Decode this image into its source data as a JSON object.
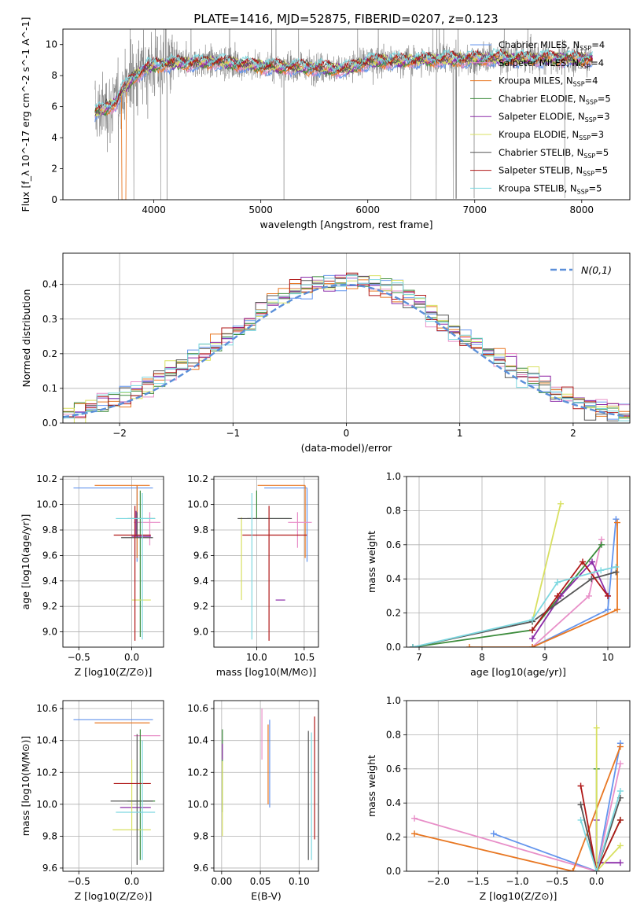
{
  "figure_title": "PLATE=1416, MJD=52875, FIBERID=0207, z=0.123",
  "colors": {
    "Chabrier MILES": "#6495ED",
    "Salpeter MILES": "#E88FC8",
    "Kroupa MILES": "#E87722",
    "Chabrier ELODIE": "#3C8C3C",
    "Salpeter ELODIE": "#8B2BA8",
    "Kroupa ELODIE": "#D8E060",
    "Chabrier STELIB": "#555555",
    "Salpeter STELIB": "#B01818",
    "Kroupa STELIB": "#7DD8E0",
    "data": "#808080"
  },
  "chart_data": [
    {
      "id": "spectrum",
      "type": "line",
      "xlabel": "wavelength [Angstrom, rest frame]",
      "ylabel": "Flux [f_λ 10^-17 erg cm^-2 s^-1 A^-1]",
      "xlim": [
        3150,
        8450
      ],
      "ylim": [
        0,
        11
      ],
      "xticks": [
        4000,
        5000,
        6000,
        7000,
        8000
      ],
      "yticks": [
        0,
        2,
        4,
        6,
        8,
        10
      ],
      "legend_position": "top-right",
      "legend": [
        {
          "name": "Chabrier MILES",
          "nssp": "4"
        },
        {
          "name": "Salpeter MILES",
          "nssp": "4"
        },
        {
          "name": "Kroupa MILES",
          "nssp": "4"
        },
        {
          "name": "Chabrier ELODIE",
          "nssp": "5"
        },
        {
          "name": "Salpeter ELODIE",
          "nssp": "3"
        },
        {
          "name": "Kroupa ELODIE",
          "nssp": "3"
        },
        {
          "name": "Chabrier STELIB",
          "nssp": "5"
        },
        {
          "name": "Salpeter STELIB",
          "nssp": "5"
        },
        {
          "name": "Kroupa STELIB",
          "nssp": "5"
        }
      ],
      "continuum": [
        [
          3450,
          5.6
        ],
        [
          3550,
          5.9
        ],
        [
          3650,
          6.3
        ],
        [
          3700,
          7.0
        ],
        [
          3800,
          7.8
        ],
        [
          3900,
          8.4
        ],
        [
          4000,
          8.7
        ],
        [
          4300,
          8.8
        ],
        [
          4600,
          8.9
        ],
        [
          5000,
          8.6
        ],
        [
          5500,
          8.5
        ],
        [
          5800,
          8.4
        ],
        [
          6000,
          8.9
        ],
        [
          6500,
          9.0
        ],
        [
          7000,
          9.1
        ],
        [
          7500,
          9.1
        ],
        [
          8000,
          9.1
        ],
        [
          8100,
          9.1
        ]
      ]
    },
    {
      "id": "residuals",
      "type": "histogram",
      "xlabel": "(data-model)/error",
      "ylabel": "Normed distribution",
      "xlim": [
        -2.5,
        2.5
      ],
      "ylim": [
        0,
        0.49
      ],
      "xticks": [
        -2,
        -1,
        0,
        1,
        2
      ],
      "yticks": [
        0.0,
        0.1,
        0.2,
        0.3,
        0.4
      ],
      "bin_width": 0.1,
      "reference_curve": "N(0,1)",
      "legend_position": "top-right"
    },
    {
      "id": "Z_vs_age",
      "type": "scatter",
      "xlabel": "Z [log10(Z/Z⊙)]",
      "ylabel": "age [log10(age/yr)]",
      "xlim": [
        -0.65,
        0.3
      ],
      "ylim": [
        8.88,
        10.22
      ],
      "xticks": [
        -0.5,
        0.0
      ],
      "yticks": [
        9.0,
        9.2,
        9.4,
        9.6,
        9.8,
        10.0,
        10.2
      ],
      "points": [
        {
          "s": "Chabrier MILES",
          "x": 0.05,
          "y": 10.13,
          "xerr": [
            0.6,
            0.15
          ],
          "yerr": [
            0.58,
            0.02
          ]
        },
        {
          "s": "Kroupa MILES",
          "x": 0.05,
          "y": 10.15,
          "xerr": [
            0.4,
            0.12
          ],
          "yerr": [
            0.57,
            0.0
          ]
        },
        {
          "s": "Salpeter MILES",
          "x": 0.17,
          "y": 9.86,
          "xerr": [
            0.15,
            0.1
          ],
          "yerr": [
            0.18,
            0.08
          ]
        },
        {
          "s": "Chabrier ELODIE",
          "x": 0.08,
          "y": 9.89,
          "xerr": [
            0.12,
            0.14
          ],
          "yerr": [
            0.93,
            0.22
          ]
        },
        {
          "s": "Salpeter ELODIE",
          "x": 0.04,
          "y": 9.75,
          "xerr": [
            0.04,
            0.14
          ],
          "yerr": [
            0.0,
            0.2
          ]
        },
        {
          "s": "Kroupa ELODIE",
          "x": 0.0,
          "y": 9.25,
          "xerr": [
            0.0,
            0.18
          ],
          "yerr": [
            0.0,
            0.0
          ]
        },
        {
          "s": "Chabrier STELIB",
          "x": 0.05,
          "y": 9.74,
          "xerr": [
            0.15,
            0.15
          ],
          "yerr": [
            0.0,
            0.2
          ]
        },
        {
          "s": "Salpeter STELIB",
          "x": 0.03,
          "y": 9.76,
          "xerr": [
            0.2,
            0.15
          ],
          "yerr": [
            0.83,
            0.23
          ]
        },
        {
          "s": "Kroupa STELIB",
          "x": 0.1,
          "y": 9.89,
          "xerr": [
            0.25,
            0.12
          ],
          "yerr": [
            0.95,
            0.2
          ]
        }
      ]
    },
    {
      "id": "mass_vs_age",
      "type": "scatter",
      "xlabel": "mass [log10(M/M⊙)]",
      "ylabel": "",
      "xlim": [
        9.55,
        10.65
      ],
      "ylim": [
        8.88,
        10.22
      ],
      "xticks": [
        10.0,
        10.5
      ],
      "yticks": [
        9.0,
        9.2,
        9.4,
        9.6,
        9.8,
        10.0,
        10.2
      ],
      "points": [
        {
          "s": "Chabrier MILES",
          "x": 10.53,
          "y": 10.13,
          "xerr": [
            0.45,
            0.0
          ],
          "yerr": [
            0.58,
            0.0
          ]
        },
        {
          "s": "Kroupa MILES",
          "x": 10.51,
          "y": 10.15,
          "xerr": [
            0.5,
            0.0
          ],
          "yerr": [
            0.57,
            0.0
          ]
        },
        {
          "s": "Salpeter MILES",
          "x": 10.43,
          "y": 9.86,
          "xerr": [
            0.1,
            0.15
          ],
          "yerr": [
            0.2,
            0.08
          ]
        },
        {
          "s": "Chabrier ELODIE",
          "x": 10.0,
          "y": 9.89,
          "xerr": [
            0.1,
            0.35
          ],
          "yerr": [
            0.0,
            0.22
          ]
        },
        {
          "s": "Salpeter ELODIE",
          "x": 10.2,
          "y": 9.25,
          "xerr": [
            0.0,
            0.1
          ],
          "yerr": [
            0.0,
            0.0
          ]
        },
        {
          "s": "Kroupa ELODIE",
          "x": 9.84,
          "y": 9.25,
          "xerr": [
            0.0,
            0.0
          ],
          "yerr": [
            0.0,
            0.65
          ]
        },
        {
          "s": "Chabrier STELIB",
          "x": 10.02,
          "y": 9.89,
          "xerr": [
            0.22,
            0.35
          ],
          "yerr": [
            0.0,
            0.0
          ]
        },
        {
          "s": "Salpeter STELIB",
          "x": 10.13,
          "y": 9.76,
          "xerr": [
            0.28,
            0.4
          ],
          "yerr": [
            0.83,
            0.23
          ]
        },
        {
          "s": "Kroupa STELIB",
          "x": 9.95,
          "y": 9.89,
          "xerr": [
            0.0,
            0.0
          ],
          "yerr": [
            0.95,
            0.2
          ]
        }
      ]
    },
    {
      "id": "age_vs_weight",
      "type": "line",
      "xlabel": "age [log10(age/yr)]",
      "ylabel": "mass weight",
      "xlim": [
        6.8,
        10.35
      ],
      "ylim": [
        0,
        1.0
      ],
      "xticks": [
        7,
        8,
        9,
        10
      ],
      "yticks": [
        0.0,
        0.2,
        0.4,
        0.6,
        0.8,
        1.0
      ],
      "series": [
        {
          "s": "Chabrier MILES",
          "points": [
            [
              8.8,
              0.0
            ],
            [
              10.0,
              0.22
            ],
            [
              10.13,
              0.75
            ]
          ]
        },
        {
          "s": "Salpeter MILES",
          "points": [
            [
              8.8,
              0.0
            ],
            [
              9.7,
              0.3
            ],
            [
              9.9,
              0.63
            ]
          ]
        },
        {
          "s": "Kroupa MILES",
          "points": [
            [
              7.8,
              0.0
            ],
            [
              8.8,
              0.0
            ],
            [
              10.15,
              0.22
            ],
            [
              10.15,
              0.73
            ]
          ]
        },
        {
          "s": "Chabrier ELODIE",
          "points": [
            [
              6.9,
              0.0
            ],
            [
              8.8,
              0.1
            ],
            [
              9.9,
              0.6
            ]
          ]
        },
        {
          "s": "Salpeter ELODIE",
          "points": [
            [
              8.8,
              0.05
            ],
            [
              9.25,
              0.3
            ],
            [
              9.75,
              0.5
            ],
            [
              10.0,
              0.3
            ]
          ]
        },
        {
          "s": "Kroupa ELODIE",
          "points": [
            [
              8.8,
              0.15
            ],
            [
              9.25,
              0.84
            ]
          ]
        },
        {
          "s": "Chabrier STELIB",
          "points": [
            [
              6.9,
              0.0
            ],
            [
              8.8,
              0.15
            ],
            [
              9.74,
              0.4
            ],
            [
              10.13,
              0.44
            ]
          ]
        },
        {
          "s": "Salpeter STELIB",
          "points": [
            [
              8.8,
              0.1
            ],
            [
              9.2,
              0.3
            ],
            [
              9.6,
              0.5
            ],
            [
              10.0,
              0.3
            ]
          ]
        },
        {
          "s": "Kroupa STELIB",
          "points": [
            [
              6.9,
              0.0
            ],
            [
              8.8,
              0.16
            ],
            [
              9.2,
              0.38
            ],
            [
              9.89,
              0.45
            ],
            [
              10.13,
              0.47
            ]
          ]
        }
      ]
    },
    {
      "id": "Z_vs_mass",
      "type": "scatter",
      "xlabel": "Z [log10(Z/Z⊙)]",
      "ylabel": "mass [log10(M/M⊙)]",
      "xlim": [
        -0.65,
        0.3
      ],
      "ylim": [
        9.58,
        10.65
      ],
      "xticks": [
        -0.5,
        0.0
      ],
      "yticks": [
        9.6,
        9.8,
        10.0,
        10.2,
        10.4,
        10.6
      ],
      "points": [
        {
          "s": "Chabrier MILES",
          "x": 0.05,
          "y": 10.53,
          "xerr": [
            0.6,
            0.15
          ],
          "yerr": [
            0.0,
            0.0
          ]
        },
        {
          "s": "Kroupa MILES",
          "x": 0.05,
          "y": 10.51,
          "xerr": [
            0.4,
            0.12
          ],
          "yerr": [
            0.0,
            0.0
          ]
        },
        {
          "s": "Salpeter MILES",
          "x": 0.17,
          "y": 10.43,
          "xerr": [
            0.15,
            0.1
          ],
          "yerr": [
            0.0,
            0.0
          ]
        },
        {
          "s": "Chabrier ELODIE",
          "x": 0.08,
          "y": 10.02,
          "xerr": [
            0.12,
            0.14
          ],
          "yerr": [
            0.37,
            0.45
          ]
        },
        {
          "s": "Salpeter ELODIE",
          "x": 0.04,
          "y": 9.98,
          "xerr": [
            0.15,
            0.14
          ],
          "yerr": [
            0.0,
            0.0
          ]
        },
        {
          "s": "Kroupa ELODIE",
          "x": 0.0,
          "y": 9.84,
          "xerr": [
            0.18,
            0.18
          ],
          "yerr": [
            0.0,
            0.44
          ]
        },
        {
          "s": "Chabrier STELIB",
          "x": 0.05,
          "y": 10.02,
          "xerr": [
            0.25,
            0.15
          ],
          "yerr": [
            0.4,
            0.42
          ]
        },
        {
          "s": "Salpeter STELIB",
          "x": 0.03,
          "y": 10.13,
          "xerr": [
            0.2,
            0.15
          ],
          "yerr": [
            0.0,
            0.0
          ]
        },
        {
          "s": "Kroupa STELIB",
          "x": 0.1,
          "y": 9.95,
          "xerr": [
            0.25,
            0.12
          ],
          "yerr": [
            0.3,
            0.45
          ]
        }
      ]
    },
    {
      "id": "ebv_vs_mass",
      "type": "scatter",
      "xlabel": "E(B-V)",
      "ylabel": "",
      "xlim": [
        -0.01,
        0.125
      ],
      "ylim": [
        9.58,
        10.65
      ],
      "xticks": [
        0.0,
        0.05,
        0.1
      ],
      "yticks": [
        9.6,
        9.8,
        10.0,
        10.2,
        10.4,
        10.6
      ],
      "points": [
        {
          "s": "Chabrier MILES",
          "x": 0.062,
          "y": 10.28,
          "xerr": [
            0.0,
            0.0
          ],
          "yerr": [
            0.3,
            0.25
          ]
        },
        {
          "s": "Salpeter MILES",
          "x": 0.052,
          "y": 10.43,
          "xerr": [
            0.0,
            0.0
          ],
          "yerr": [
            0.15,
            0.17
          ]
        },
        {
          "s": "Kroupa MILES",
          "x": 0.06,
          "y": 10.25,
          "xerr": [
            0.0,
            0.0
          ],
          "yerr": [
            0.25,
            0.25
          ]
        },
        {
          "s": "Chabrier ELODIE",
          "x": 0.001,
          "y": 10.3,
          "xerr": [
            0.0,
            0.0
          ],
          "yerr": [
            0.35,
            0.17
          ]
        },
        {
          "s": "Salpeter ELODIE",
          "x": 0.001,
          "y": 10.33,
          "xerr": [
            0.0,
            0.0
          ],
          "yerr": [
            0.05,
            0.05
          ]
        },
        {
          "s": "Kroupa ELODIE",
          "x": 0.001,
          "y": 10.0,
          "xerr": [
            0.0,
            0.0
          ],
          "yerr": [
            0.2,
            0.27
          ]
        },
        {
          "s": "Chabrier STELIB",
          "x": 0.112,
          "y": 10.0,
          "xerr": [
            0.0,
            0.0
          ],
          "yerr": [
            0.35,
            0.46
          ]
        },
        {
          "s": "Salpeter STELIB",
          "x": 0.12,
          "y": 10.15,
          "xerr": [
            0.0,
            0.0
          ],
          "yerr": [
            0.37,
            0.4
          ]
        },
        {
          "s": "Kroupa STELIB",
          "x": 0.116,
          "y": 10.0,
          "xerr": [
            0.0,
            0.0
          ],
          "yerr": [
            0.35,
            0.45
          ]
        }
      ]
    },
    {
      "id": "Z_vs_weight",
      "type": "line",
      "xlabel": "Z [log10(Z/Z⊙)]",
      "ylabel": "mass weight",
      "xlim": [
        -2.4,
        0.42
      ],
      "ylim": [
        0,
        1.0
      ],
      "xticks": [
        -2.0,
        -1.5,
        -1.0,
        -0.5,
        0.0
      ],
      "yticks": [
        0.0,
        0.2,
        0.4,
        0.6,
        0.8,
        1.0
      ],
      "series": [
        {
          "s": "Chabrier MILES",
          "points": [
            [
              -1.3,
              0.22
            ],
            [
              0.0,
              0.0
            ],
            [
              0.3,
              0.75
            ]
          ]
        },
        {
          "s": "Salpeter MILES",
          "points": [
            [
              -2.3,
              0.31
            ],
            [
              0.0,
              0.0
            ],
            [
              0.3,
              0.63
            ]
          ]
        },
        {
          "s": "Kroupa MILES",
          "points": [
            [
              -2.3,
              0.22
            ],
            [
              -0.3,
              0.0
            ],
            [
              0.3,
              0.73
            ]
          ]
        },
        {
          "s": "Chabrier ELODIE",
          "points": [
            [
              0.0,
              0.6
            ],
            [
              0.0,
              0.0
            ],
            [
              0.3,
              0.3
            ]
          ]
        },
        {
          "s": "Salpeter ELODIE",
          "points": [
            [
              0.0,
              0.3
            ],
            [
              0.0,
              0.05
            ],
            [
              0.3,
              0.05
            ]
          ]
        },
        {
          "s": "Kroupa ELODIE",
          "points": [
            [
              0.0,
              0.84
            ],
            [
              0.0,
              0.0
            ],
            [
              0.3,
              0.15
            ]
          ]
        },
        {
          "s": "Chabrier STELIB",
          "points": [
            [
              -0.2,
              0.39
            ],
            [
              0.0,
              0.0
            ],
            [
              0.3,
              0.43
            ]
          ]
        },
        {
          "s": "Salpeter STELIB",
          "points": [
            [
              -0.2,
              0.5
            ],
            [
              0.0,
              0.0
            ],
            [
              0.3,
              0.3
            ]
          ]
        },
        {
          "s": "Kroupa STELIB",
          "points": [
            [
              -0.2,
              0.3
            ],
            [
              0.0,
              0.0
            ],
            [
              0.3,
              0.47
            ]
          ]
        }
      ]
    }
  ]
}
